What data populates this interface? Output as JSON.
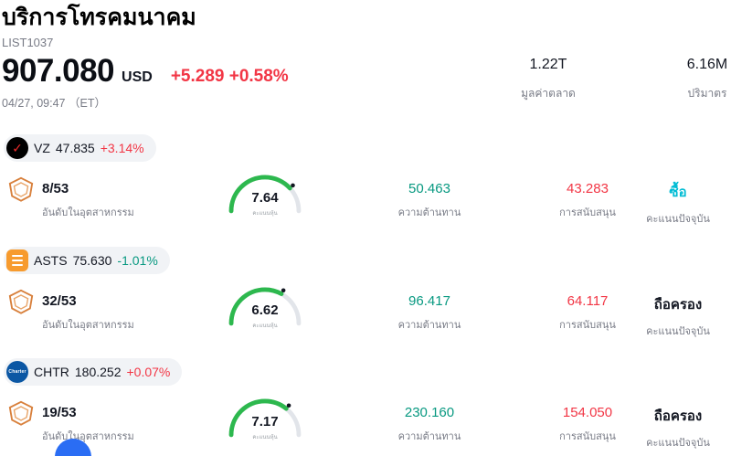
{
  "header": {
    "title": "บริการโทรคมนาคม",
    "subtitle": "LIST1037",
    "price": "907.080",
    "currency": "USD",
    "change": "+5.289 +0.58%",
    "change_color": "#f23645",
    "timestamp": "04/27, 09:47 （ET）",
    "market_cap": {
      "value": "1.22T",
      "label": "มูลค่าตลาด"
    },
    "volume": {
      "value": "6.16M",
      "label": "ปริมาตร"
    }
  },
  "colors": {
    "up_red": "#f23645",
    "down_green": "#089981",
    "gauge_green": "#2db84e",
    "buy_blue": "#00bcd4",
    "muted_gray": "#787b86"
  },
  "icons": {
    "verizon_check": "✓"
  },
  "rows": [
    {
      "ticker": "VZ",
      "price": "47.835",
      "change": "+3.14%",
      "change_color": "#f23645",
      "rank": "8/53",
      "rank_label": "อันดับในอุตสาหกรรม",
      "gauge": {
        "value": 7.64,
        "value_text": "7.64",
        "label": "คะแนนหุ้น"
      },
      "resistance": {
        "value": "50.463",
        "label": "ความต้านทาน",
        "color": "#089981"
      },
      "support": {
        "value": "43.283",
        "label": "การสนับสนุน",
        "color": "#f23645"
      },
      "action": {
        "value": "ซื้อ",
        "label": "คะแนนปัจจุบัน",
        "color": "#00bcd4"
      }
    },
    {
      "ticker": "ASTS",
      "price": "75.630",
      "change": "-1.01%",
      "change_color": "#089981",
      "rank": "32/53",
      "rank_label": "อันดับในอุตสาหกรรม",
      "gauge": {
        "value": 6.62,
        "value_text": "6.62",
        "label": "คะแนนหุ้น"
      },
      "resistance": {
        "value": "96.417",
        "label": "ความต้านทาน",
        "color": "#089981"
      },
      "support": {
        "value": "64.117",
        "label": "การสนับสนุน",
        "color": "#f23645"
      },
      "action": {
        "value": "ถือครอง",
        "label": "คะแนนปัจจุบัน",
        "color": "#131722"
      }
    },
    {
      "ticker": "CHTR",
      "price": "180.252",
      "change": "+0.07%",
      "change_color": "#f23645",
      "logo_text": "Charter",
      "rank": "19/53",
      "rank_label": "อันดับในอุตสาหกรรม",
      "gauge": {
        "value": 7.17,
        "value_text": "7.17",
        "label": "คะแนนหุ้น"
      },
      "resistance": {
        "value": "230.160",
        "label": "ความต้านทาน",
        "color": "#089981"
      },
      "support": {
        "value": "154.050",
        "label": "การสนับสนุน",
        "color": "#f23645"
      },
      "action": {
        "value": "ถือครอง",
        "label": "คะแนนปัจจุบัน",
        "color": "#131722"
      }
    }
  ]
}
